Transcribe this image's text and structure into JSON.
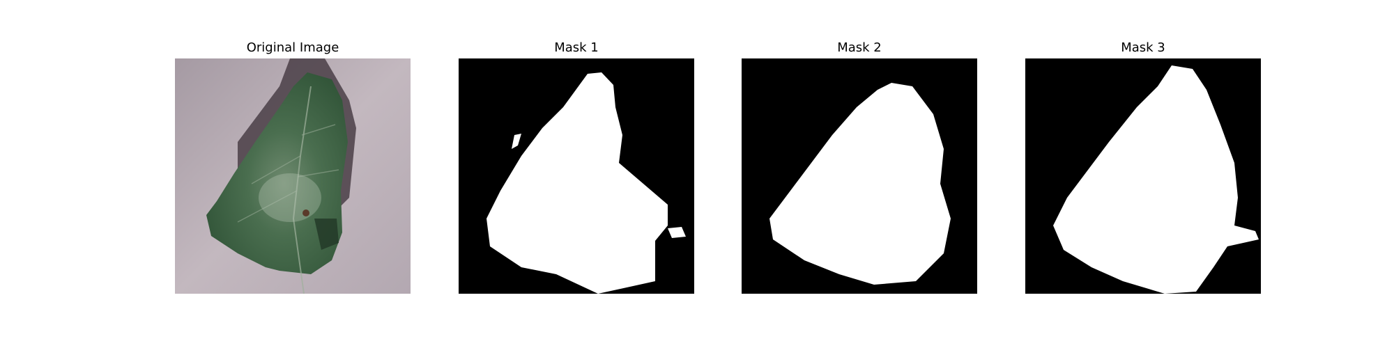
{
  "figure": {
    "panels": [
      {
        "title": "Original Image"
      },
      {
        "title": "Mask 1"
      },
      {
        "title": "Mask 2"
      },
      {
        "title": "Mask 3"
      }
    ]
  },
  "colors": {
    "background": "#ffffff",
    "mask_background": "#000000",
    "mask_foreground": "#ffffff",
    "leaf_green": "#3f6a45",
    "leaf_dark": "#2e4f35",
    "surface": "#b9aeb6",
    "shadow": "#4a3e47"
  }
}
